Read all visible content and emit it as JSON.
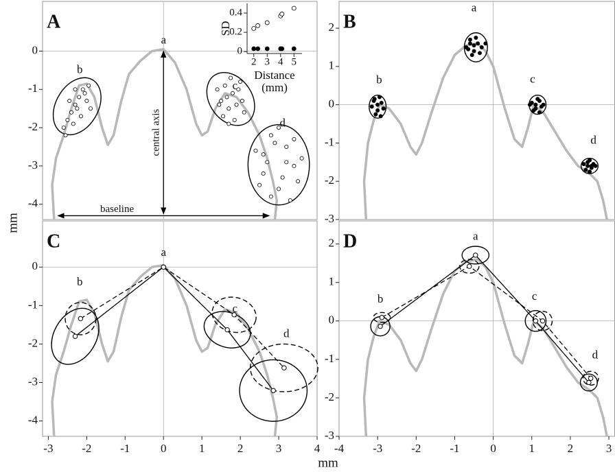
{
  "chart_data": [
    {
      "type": "scatter",
      "label": "A",
      "xlim": [
        -3.15,
        4.0
      ],
      "ylim": [
        -4.4,
        1.3
      ],
      "yticks": [
        0,
        -1,
        -2,
        -3,
        -4
      ],
      "curve": {
        "color": "#b8b8b8",
        "x": [
          -2.85,
          -2.9,
          -2.8,
          -2.6,
          -2.4,
          -2.2,
          -2.0,
          -1.8,
          -1.6,
          -1.45,
          -1.3,
          -1.1,
          -0.9,
          -0.6,
          -0.3,
          0,
          0.3,
          0.6,
          0.85,
          1.0,
          1.15,
          1.35,
          1.6,
          1.9,
          2.2,
          2.5,
          2.7,
          2.85,
          2.95,
          2.9
        ],
        "y": [
          -4.4,
          -3.5,
          -2.8,
          -2.2,
          -1.5,
          -0.9,
          -0.85,
          -1.2,
          -2.0,
          -2.45,
          -2.2,
          -1.3,
          -0.6,
          -0.25,
          0.0,
          0.05,
          -0.3,
          -1.0,
          -1.9,
          -2.2,
          -2.1,
          -1.5,
          -1.1,
          -1.2,
          -1.6,
          -2.2,
          -2.8,
          -3.4,
          -3.9,
          -4.4
        ]
      },
      "series": [
        {
          "marker": "open",
          "color": "#000",
          "x": [
            -2.6,
            -2.5,
            -2.4,
            -2.3,
            -2.2,
            -2.1,
            -2.0,
            -1.9,
            -2.45,
            -2.35,
            -2.15,
            -2.05,
            -2.55,
            -1.95,
            -2.25,
            -2.3
          ],
          "y": [
            -2.0,
            -1.8,
            -1.6,
            -1.4,
            -1.2,
            -1.0,
            -1.3,
            -1.5,
            -1.3,
            -1.9,
            -1.7,
            -1.1,
            -2.2,
            -0.9,
            -1.5,
            -1.0
          ]
        },
        {
          "marker": "open",
          "color": "#000",
          "x": [
            1.4,
            1.5,
            1.6,
            1.7,
            1.8,
            1.9,
            2.0,
            2.1,
            1.55,
            1.65,
            1.85,
            1.95,
            1.45,
            2.05,
            1.75,
            1.7
          ],
          "y": [
            -1.0,
            -1.3,
            -0.9,
            -1.5,
            -1.1,
            -1.4,
            -0.8,
            -1.6,
            -1.7,
            -1.2,
            -1.8,
            -1.0,
            -1.4,
            -1.3,
            -0.7,
            -1.9
          ]
        },
        {
          "marker": "open",
          "color": "#000",
          "x": [
            2.4,
            2.6,
            2.8,
            3.0,
            3.2,
            3.4,
            3.6,
            2.5,
            2.7,
            2.9,
            3.1,
            3.3,
            3.5,
            2.8,
            3.0,
            3.2,
            2.6,
            3.4
          ],
          "y": [
            -2.6,
            -3.2,
            -2.2,
            -3.6,
            -2.5,
            -3.0,
            -2.8,
            -3.5,
            -2.9,
            -2.4,
            -3.3,
            -3.9,
            -3.4,
            -3.8,
            -2.0,
            -2.9,
            -2.7,
            -2.3
          ]
        }
      ],
      "ellipses": [
        {
          "cx": -2.25,
          "cy": -1.44,
          "rx": 0.55,
          "ry": 0.8,
          "angle": -30,
          "dashed": false
        },
        {
          "cx": 1.75,
          "cy": -1.25,
          "rx": 0.55,
          "ry": 0.75,
          "angle": 35,
          "dashed": false
        },
        {
          "cx": 3.0,
          "cy": -2.97,
          "rx": 0.8,
          "ry": 1.05,
          "angle": 0,
          "dashed": false
        }
      ],
      "landmarks": [
        {
          "text": "a",
          "x": 0,
          "y": 0.27
        },
        {
          "text": "b",
          "x": -2.18,
          "y": -0.5
        },
        {
          "text": "c",
          "x": 1.86,
          "y": -0.92
        },
        {
          "text": "d",
          "x": 3.1,
          "y": -1.9
        }
      ],
      "annotations": [
        {
          "text": "central axis",
          "x": [
            0,
            0
          ],
          "y": [
            0,
            -4.25
          ]
        },
        {
          "text": "baseline",
          "x": [
            -2.75,
            2.75
          ],
          "y": [
            -4.3,
            -4.3
          ]
        }
      ],
      "inset": {
        "type": "scatter",
        "ylabel": "SD",
        "xlabel": [
          "Distance",
          "(mm)"
        ],
        "xlim": [
          1.5,
          5.6
        ],
        "ylim": [
          -0.02,
          0.5
        ],
        "xticks": [
          2,
          3,
          4,
          5
        ],
        "yticks": [
          0,
          0.2,
          0.4
        ],
        "series": [
          {
            "marker": "open",
            "color": "#000",
            "x": [
              2,
              2.3,
              3,
              4,
              4.1,
              5
            ],
            "y": [
              0.24,
              0.27,
              0.3,
              0.37,
              0.39,
              0.45
            ]
          },
          {
            "marker": "filled",
            "color": "#000",
            "x": [
              2,
              2.3,
              3,
              4,
              4.1,
              5
            ],
            "y": [
              0.03,
              0.03,
              0.03,
              0.03,
              0.03,
              0.03
            ]
          }
        ]
      }
    },
    {
      "type": "scatter",
      "label": "B",
      "xlim": [
        -4.0,
        3.15
      ],
      "ylim": [
        -3.0,
        2.7
      ],
      "yticks": [
        2,
        1,
        0,
        -1,
        -2,
        -3
      ],
      "curve": {
        "color": "#b8b8b8",
        "x": [
          -3.3,
          -3.35,
          -3.25,
          -3.1,
          -2.95,
          -2.7,
          -2.4,
          -2.15,
          -2.0,
          -1.85,
          -1.6,
          -1.3,
          -1.0,
          -0.7,
          -0.4,
          -0.2,
          0,
          0.3,
          0.55,
          0.75,
          0.9,
          1.05,
          1.3,
          1.6,
          1.9,
          2.2,
          2.5,
          2.7,
          2.85,
          2.95
        ],
        "y": [
          -3.0,
          -2.0,
          -1.0,
          -0.4,
          0.0,
          -0.1,
          -0.5,
          -1.1,
          -1.3,
          -1.0,
          -0.2,
          0.7,
          1.3,
          1.55,
          1.6,
          1.4,
          1.0,
          -0.1,
          -0.9,
          -1.1,
          -0.6,
          0.0,
          -0.2,
          -0.7,
          -1.2,
          -1.6,
          -1.8,
          -2.0,
          -2.5,
          -3.0
        ]
      },
      "series": [
        {
          "marker": "filled",
          "color": "#000",
          "x": [
            -3.1,
            -3.0,
            -2.9,
            -3.05,
            -2.95,
            -3.15,
            -2.85,
            -3.0,
            -3.08,
            -2.92
          ],
          "y": [
            0.1,
            -0.15,
            0.05,
            -0.25,
            0.2,
            -0.05,
            -0.1,
            0.0,
            0.15,
            -0.3
          ]
        },
        {
          "marker": "filled",
          "color": "#000",
          "x": [
            -0.7,
            -0.6,
            -0.5,
            -0.4,
            -0.3,
            -0.55,
            -0.45,
            -0.65,
            -0.35,
            -0.5,
            -0.2,
            -0.6
          ],
          "y": [
            1.5,
            1.7,
            1.4,
            1.6,
            1.5,
            1.3,
            1.75,
            1.45,
            1.35,
            1.55,
            1.6,
            1.6
          ]
        },
        {
          "marker": "filled",
          "color": "#000",
          "x": [
            1.0,
            1.1,
            1.2,
            1.3,
            1.05,
            1.15,
            1.25,
            1.1,
            1.2,
            0.95
          ],
          "y": [
            0.05,
            -0.1,
            0.1,
            0.0,
            -0.15,
            0.15,
            -0.05,
            0.0,
            -0.2,
            0.0
          ]
        },
        {
          "marker": "filled",
          "color": "#000",
          "x": [
            2.35,
            2.45,
            2.55,
            2.65,
            2.4,
            2.5,
            2.6,
            2.5,
            2.45,
            2.55
          ],
          "y": [
            -1.55,
            -1.5,
            -1.65,
            -1.6,
            -1.7,
            -1.45,
            -1.55,
            -1.75,
            -1.6,
            -1.6
          ]
        }
      ],
      "ellipses": [
        {
          "cx": -3.0,
          "cy": -0.05,
          "rx": 0.22,
          "ry": 0.3,
          "angle": 0,
          "dashed": false
        },
        {
          "cx": -0.45,
          "cy": 1.5,
          "rx": 0.3,
          "ry": 0.38,
          "angle": 0,
          "dashed": false
        },
        {
          "cx": 1.15,
          "cy": 0.0,
          "rx": 0.22,
          "ry": 0.25,
          "angle": 0,
          "dashed": false
        },
        {
          "cx": 2.5,
          "cy": -1.6,
          "rx": 0.22,
          "ry": 0.2,
          "angle": 0,
          "dashed": false
        }
      ],
      "landmarks": [
        {
          "text": "a",
          "x": -0.5,
          "y": 2.51
        },
        {
          "text": "b",
          "x": -2.96,
          "y": 0.63
        },
        {
          "text": "c",
          "x": 1.02,
          "y": 0.65
        },
        {
          "text": "d",
          "x": 2.6,
          "y": -0.95
        }
      ]
    },
    {
      "type": "line",
      "label": "C",
      "xlim": [
        -3.15,
        4.0
      ],
      "ylim": [
        -4.4,
        1.2
      ],
      "yticks": [
        0,
        -1,
        -2,
        -3,
        -4
      ],
      "xticks": [
        -3,
        -2,
        -1,
        0,
        1,
        2,
        3,
        4
      ],
      "curve": {
        "color": "#b8b8b8",
        "x": [
          -2.85,
          -2.9,
          -2.8,
          -2.6,
          -2.4,
          -2.2,
          -2.0,
          -1.8,
          -1.6,
          -1.45,
          -1.3,
          -1.1,
          -0.9,
          -0.6,
          -0.3,
          0,
          0.3,
          0.6,
          0.85,
          1.0,
          1.15,
          1.35,
          1.6,
          1.9,
          2.2,
          2.5,
          2.7,
          2.85,
          2.95,
          2.9
        ],
        "y": [
          -4.4,
          -3.5,
          -2.8,
          -2.2,
          -1.5,
          -0.9,
          -0.85,
          -1.2,
          -2.0,
          -2.45,
          -2.2,
          -1.3,
          -0.6,
          -0.25,
          0.0,
          0.05,
          -0.3,
          -1.0,
          -1.9,
          -2.2,
          -2.1,
          -1.5,
          -1.1,
          -1.2,
          -1.6,
          -2.2,
          -2.8,
          -3.4,
          -3.9,
          -4.4
        ]
      },
      "lines": [
        {
          "dashed": false,
          "color": "#000",
          "x": [
            -2.3,
            0,
            1.66,
            2.86
          ],
          "y": [
            -1.8,
            0,
            -1.63,
            -3.21
          ]
        },
        {
          "dashed": true,
          "color": "#000",
          "x": [
            -2.16,
            0,
            1.84,
            3.14
          ],
          "y": [
            -1.34,
            0,
            -1.24,
            -2.62
          ]
        }
      ],
      "ellipses": [
        {
          "cx": -2.3,
          "cy": -1.8,
          "rx": 0.55,
          "ry": 0.78,
          "angle": -30,
          "dashed": false
        },
        {
          "cx": 1.66,
          "cy": -1.63,
          "rx": 0.62,
          "ry": 0.45,
          "angle": -20,
          "dashed": false
        },
        {
          "cx": 2.86,
          "cy": -3.21,
          "rx": 0.88,
          "ry": 0.8,
          "angle": 0,
          "dashed": false
        },
        {
          "cx": -2.16,
          "cy": -1.34,
          "rx": 0.4,
          "ry": 0.42,
          "angle": 0,
          "dashed": true
        },
        {
          "cx": 1.84,
          "cy": -1.24,
          "rx": 0.58,
          "ry": 0.45,
          "angle": -15,
          "dashed": true
        },
        {
          "cx": 3.14,
          "cy": -2.62,
          "rx": 0.88,
          "ry": 0.62,
          "angle": 0,
          "dashed": true
        }
      ],
      "landmarks": [
        {
          "text": "a",
          "x": 0,
          "y": 0.36
        },
        {
          "text": "b",
          "x": -2.18,
          "y": -0.41
        },
        {
          "text": "c",
          "x": 1.86,
          "y": -1.1
        },
        {
          "text": "d",
          "x": 3.2,
          "y": -1.75
        }
      ]
    },
    {
      "type": "line",
      "label": "D",
      "xlim": [
        -4.0,
        3.15
      ],
      "ylim": [
        -3.0,
        2.6
      ],
      "yticks": [
        2,
        1,
        0,
        -1,
        -2,
        -3
      ],
      "xticks": [
        -4,
        -3,
        -2,
        -1,
        0,
        1,
        2,
        3
      ],
      "curve": {
        "color": "#b8b8b8",
        "x": [
          -3.3,
          -3.35,
          -3.25,
          -3.1,
          -2.95,
          -2.7,
          -2.4,
          -2.15,
          -2.0,
          -1.85,
          -1.6,
          -1.3,
          -1.0,
          -0.7,
          -0.4,
          -0.2,
          0,
          0.3,
          0.55,
          0.75,
          0.9,
          1.05,
          1.3,
          1.6,
          1.9,
          2.2,
          2.5,
          2.7,
          2.85,
          2.95
        ],
        "y": [
          -3.0,
          -2.0,
          -1.0,
          -0.4,
          0.0,
          -0.1,
          -0.5,
          -1.1,
          -1.3,
          -1.0,
          -0.2,
          0.7,
          1.3,
          1.55,
          1.6,
          1.4,
          1.0,
          -0.1,
          -0.9,
          -1.1,
          -0.6,
          0.0,
          -0.2,
          -0.7,
          -1.2,
          -1.6,
          -1.8,
          -2.0,
          -2.5,
          -3.0
        ]
      },
      "lines": [
        {
          "dashed": false,
          "color": "#000",
          "x": [
            -2.93,
            -0.46,
            1.1,
            2.48
          ],
          "y": [
            -0.14,
            1.71,
            0.0,
            -1.6
          ]
        },
        {
          "dashed": true,
          "color": "#000",
          "x": [
            -2.89,
            -0.62,
            1.28,
            2.53
          ],
          "y": [
            0.09,
            1.42,
            0.0,
            -1.49
          ]
        }
      ],
      "ellipses": [
        {
          "cx": -2.93,
          "cy": -0.14,
          "rx": 0.25,
          "ry": 0.25,
          "angle": 0,
          "dashed": false
        },
        {
          "cx": -0.46,
          "cy": 1.71,
          "rx": 0.35,
          "ry": 0.23,
          "angle": 0,
          "dashed": false
        },
        {
          "cx": 1.1,
          "cy": 0.0,
          "rx": 0.27,
          "ry": 0.27,
          "angle": 0,
          "dashed": false
        },
        {
          "cx": 2.48,
          "cy": -1.6,
          "rx": 0.22,
          "ry": 0.22,
          "angle": 0,
          "dashed": false
        },
        {
          "cx": -2.89,
          "cy": 0.09,
          "rx": 0.22,
          "ry": 0.13,
          "angle": 0,
          "dashed": true
        },
        {
          "cx": -0.62,
          "cy": 1.42,
          "rx": 0.25,
          "ry": 0.18,
          "angle": 0,
          "dashed": true
        },
        {
          "cx": 1.28,
          "cy": 0.0,
          "rx": 0.25,
          "ry": 0.25,
          "angle": 0,
          "dashed": true
        },
        {
          "cx": 2.53,
          "cy": -1.49,
          "rx": 0.2,
          "ry": 0.18,
          "angle": 0,
          "dashed": true
        }
      ],
      "landmarks": [
        {
          "text": "a",
          "x": -0.46,
          "y": 2.18
        },
        {
          "text": "b",
          "x": -2.93,
          "y": 0.55
        },
        {
          "text": "c",
          "x": 1.07,
          "y": 0.62
        },
        {
          "text": "d",
          "x": 2.64,
          "y": -0.91
        }
      ]
    }
  ],
  "figure": {
    "xlabel": "mm",
    "ylabel": "mm"
  }
}
